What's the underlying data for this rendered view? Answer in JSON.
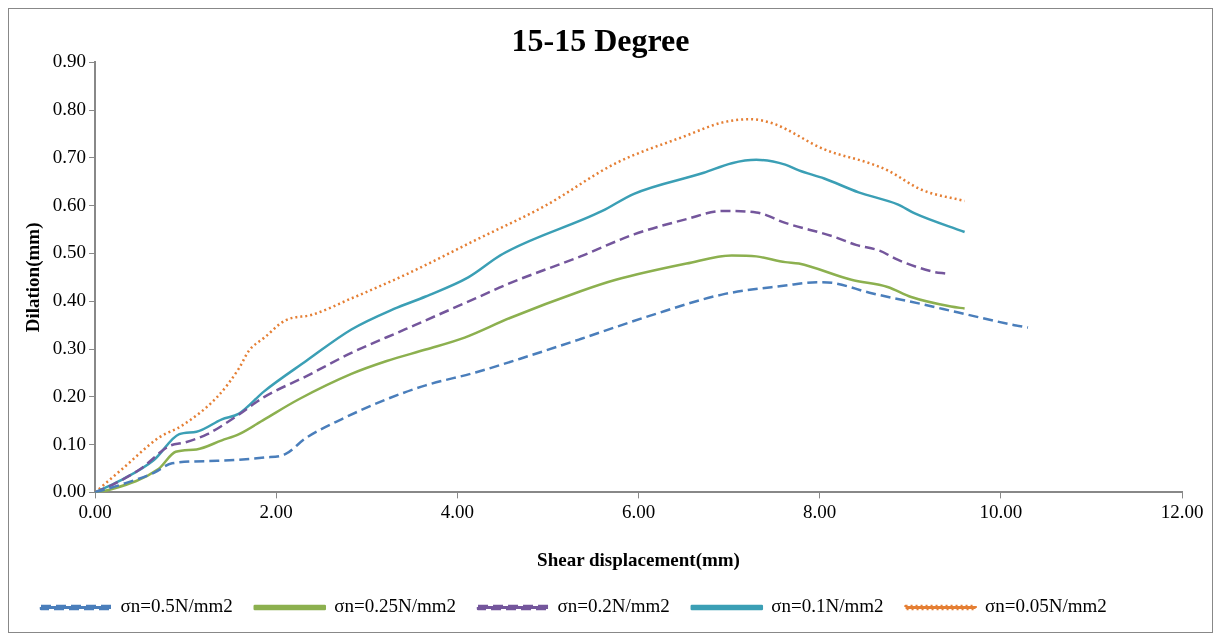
{
  "chart_data": {
    "type": "line",
    "title": "15-15 Degree",
    "xlabel": "Shear displacement(mm)",
    "ylabel": "Dilation(mm)",
    "xlim": [
      0,
      12
    ],
    "ylim": [
      0,
      0.9
    ],
    "xticks": [
      {
        "value": 0,
        "label": "0.00"
      },
      {
        "value": 2,
        "label": "2.00"
      },
      {
        "value": 4,
        "label": "4.00"
      },
      {
        "value": 6,
        "label": "6.00"
      },
      {
        "value": 8,
        "label": "8.00"
      },
      {
        "value": 10,
        "label": "10.00"
      },
      {
        "value": 12,
        "label": "12.00"
      }
    ],
    "yticks": [
      {
        "value": 0,
        "label": "0.00"
      },
      {
        "value": 0.1,
        "label": "0.10"
      },
      {
        "value": 0.2,
        "label": "0.20"
      },
      {
        "value": 0.3,
        "label": "0.30"
      },
      {
        "value": 0.4,
        "label": "0.40"
      },
      {
        "value": 0.5,
        "label": "0.50"
      },
      {
        "value": 0.6,
        "label": "0.60"
      },
      {
        "value": 0.7,
        "label": "0.70"
      },
      {
        "value": 0.8,
        "label": "0.80"
      },
      {
        "value": 0.9,
        "label": "0.90"
      }
    ],
    "grid": false,
    "legend": "bottom",
    "marker": "none",
    "series": [
      {
        "name": "σn=0.5N/mm2",
        "color": "#4a7ebb",
        "line_style": "dashed",
        "x": [
          0,
          0.3,
          0.65,
          0.85,
          1.35,
          1.87,
          2.1,
          2.33,
          2.72,
          3.22,
          3.65,
          4.2,
          4.78,
          5.36,
          6.13,
          6.92,
          7.62,
          7.97,
          8.16,
          8.55,
          9.13,
          9.52,
          10.15,
          10.3
        ],
        "values": [
          0,
          0.017,
          0.041,
          0.061,
          0.066,
          0.073,
          0.08,
          0.114,
          0.153,
          0.195,
          0.224,
          0.251,
          0.285,
          0.321,
          0.37,
          0.414,
          0.433,
          0.44,
          0.438,
          0.418,
          0.394,
          0.377,
          0.35,
          0.345
        ]
      },
      {
        "name": "σn=0.25N/mm2",
        "color": "#8cb04f",
        "line_style": "solid",
        "x": [
          0,
          0.15,
          0.7,
          0.89,
          1.12,
          1.4,
          1.59,
          1.87,
          2.25,
          2.83,
          3.22,
          3.65,
          4.08,
          4.58,
          5.36,
          5.75,
          6.53,
          7.03,
          7.3,
          7.62,
          7.77,
          8.35,
          8.75,
          9.01,
          9.45,
          9.6
        ],
        "values": [
          0,
          0.005,
          0.049,
          0.085,
          0.09,
          0.109,
          0.122,
          0.153,
          0.195,
          0.248,
          0.275,
          0.299,
          0.324,
          0.365,
          0.421,
          0.445,
          0.479,
          0.496,
          0.494,
          0.482,
          0.479,
          0.445,
          0.43,
          0.409,
          0.389,
          0.385
        ]
      },
      {
        "name": "σn=0.2N/mm2",
        "color": "#74569c",
        "line_style": "dashed",
        "x": [
          0,
          0.15,
          0.5,
          0.82,
          1,
          1.24,
          1.55,
          1.87,
          2.33,
          2.83,
          3.42,
          4.2,
          4.58,
          5.36,
          5.95,
          6.53,
          6.92,
          7.3,
          7.62,
          8.16,
          8.4,
          8.66,
          8.86,
          9.25,
          9.4
        ],
        "values": [
          0,
          0.012,
          0.049,
          0.097,
          0.105,
          0.122,
          0.158,
          0.2,
          0.243,
          0.292,
          0.341,
          0.406,
          0.438,
          0.494,
          0.54,
          0.572,
          0.589,
          0.586,
          0.564,
          0.535,
          0.518,
          0.506,
          0.487,
          0.462,
          0.458
        ]
      },
      {
        "name": "σn=0.1N/mm2",
        "color": "#3b9fb5",
        "line_style": "solid",
        "x": [
          0,
          0.27,
          0.65,
          0.93,
          1.12,
          1.4,
          1.59,
          1.87,
          2.33,
          2.83,
          3.3,
          3.65,
          4.12,
          4.5,
          5.6,
          5.95,
          6.72,
          7.03,
          7.3,
          7.62,
          7.77,
          8.05,
          8.43,
          8.86,
          9.05,
          9.6
        ],
        "values": [
          0,
          0.024,
          0.068,
          0.122,
          0.127,
          0.153,
          0.165,
          0.212,
          0.275,
          0.341,
          0.384,
          0.41,
          0.45,
          0.499,
          0.589,
          0.625,
          0.669,
          0.689,
          0.696,
          0.686,
          0.674,
          0.657,
          0.628,
          0.603,
          0.584,
          0.545
        ]
      },
      {
        "name": "σn=0.05N/mm2",
        "color": "#e57f34",
        "line_style": "dotted",
        "x": [
          0,
          0.3,
          0.7,
          0.97,
          1.35,
          1.59,
          1.7,
          1.87,
          2.1,
          2.4,
          2.83,
          3.42,
          4.2,
          4.97,
          5.75,
          6.53,
          6.92,
          7.23,
          7.5,
          8.05,
          8.55,
          8.75,
          9.13,
          9.6
        ],
        "values": [
          0,
          0.049,
          0.114,
          0.141,
          0.2,
          0.26,
          0.297,
          0.324,
          0.36,
          0.372,
          0.406,
          0.455,
          0.528,
          0.6,
          0.689,
          0.747,
          0.774,
          0.781,
          0.771,
          0.718,
          0.689,
          0.674,
          0.633,
          0.61
        ]
      }
    ]
  }
}
